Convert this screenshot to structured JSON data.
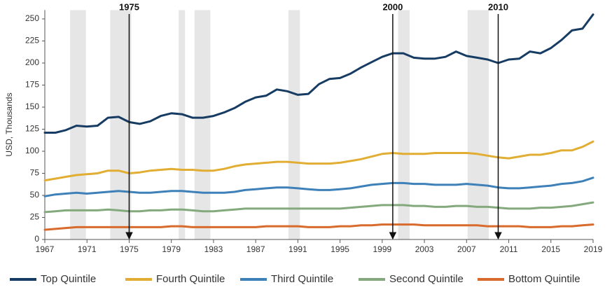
{
  "chart_data": {
    "type": "line",
    "y_label": "USD, Thousands",
    "x": [
      1967,
      1968,
      1969,
      1970,
      1971,
      1972,
      1973,
      1974,
      1975,
      1976,
      1977,
      1978,
      1979,
      1980,
      1981,
      1982,
      1983,
      1984,
      1985,
      1986,
      1987,
      1988,
      1989,
      1990,
      1991,
      1992,
      1993,
      1994,
      1995,
      1996,
      1997,
      1998,
      1999,
      2000,
      2001,
      2002,
      2003,
      2004,
      2005,
      2006,
      2007,
      2008,
      2009,
      2010,
      2011,
      2012,
      2013,
      2014,
      2015,
      2016,
      2017,
      2018,
      2019
    ],
    "series": [
      {
        "name": "Top Quintile",
        "color": "#173c63",
        "values": [
          121,
          121,
          124,
          129,
          128,
          129,
          138,
          139,
          133,
          131,
          134,
          140,
          143,
          142,
          138,
          138,
          140,
          144,
          149,
          156,
          161,
          163,
          170,
          168,
          164,
          165,
          176,
          182,
          183,
          188,
          195,
          201,
          207,
          211,
          211,
          206,
          205,
          205,
          207,
          213,
          208,
          206,
          204,
          200,
          204,
          205,
          213,
          211,
          217,
          226,
          237,
          239,
          255
        ]
      },
      {
        "name": "Fourth Quintile",
        "color": "#e1ae33",
        "values": [
          67,
          69,
          71,
          73,
          74,
          75,
          78,
          78,
          75,
          76,
          78,
          79,
          80,
          79,
          79,
          78,
          78,
          80,
          83,
          85,
          86,
          87,
          88,
          88,
          87,
          86,
          86,
          86,
          87,
          89,
          91,
          94,
          97,
          98,
          97,
          97,
          97,
          98,
          98,
          98,
          98,
          97,
          95,
          93,
          92,
          94,
          96,
          96,
          98,
          101,
          101,
          105,
          111
        ]
      },
      {
        "name": "Third Quintile",
        "color": "#3e80b8",
        "values": [
          49,
          51,
          52,
          53,
          52,
          53,
          54,
          55,
          54,
          53,
          53,
          54,
          55,
          55,
          54,
          53,
          53,
          53,
          54,
          56,
          57,
          58,
          59,
          59,
          58,
          57,
          56,
          56,
          57,
          58,
          60,
          62,
          63,
          64,
          64,
          63,
          63,
          62,
          62,
          62,
          63,
          62,
          61,
          59,
          58,
          58,
          59,
          60,
          61,
          63,
          64,
          66,
          70
        ]
      },
      {
        "name": "Second Quintile",
        "color": "#84a97c",
        "values": [
          31,
          32,
          33,
          33,
          33,
          33,
          34,
          33,
          32,
          32,
          33,
          33,
          34,
          34,
          33,
          32,
          32,
          33,
          34,
          35,
          35,
          35,
          35,
          35,
          35,
          35,
          35,
          35,
          35,
          36,
          37,
          38,
          39,
          39,
          39,
          38,
          38,
          37,
          37,
          38,
          38,
          37,
          37,
          36,
          35,
          35,
          35,
          36,
          36,
          37,
          38,
          40,
          42
        ]
      },
      {
        "name": "Bottom Quintile",
        "color": "#d86a2c",
        "values": [
          11,
          12,
          13,
          14,
          14,
          14,
          14,
          14,
          14,
          14,
          14,
          14,
          15,
          15,
          14,
          14,
          14,
          14,
          14,
          14,
          14,
          15,
          15,
          15,
          15,
          14,
          14,
          14,
          15,
          15,
          16,
          16,
          17,
          17,
          17,
          17,
          16,
          16,
          16,
          16,
          16,
          16,
          15,
          15,
          15,
          15,
          14,
          14,
          14,
          15,
          15,
          16,
          17
        ]
      }
    ],
    "xlim": [
      1967,
      2019
    ],
    "xticks": [
      1967,
      1971,
      1975,
      1979,
      1983,
      1987,
      1991,
      1995,
      1999,
      2003,
      2007,
      2011,
      2015,
      2019
    ],
    "ylim": [
      0,
      260
    ],
    "yticks": [
      0,
      25,
      50,
      75,
      100,
      125,
      150,
      175,
      200,
      225,
      250
    ],
    "grid": false,
    "shade_color": "#e6e6e6",
    "shaded_periods": [
      {
        "start": 1969.4,
        "end": 1970.9
      },
      {
        "start": 1973.2,
        "end": 1975.2
      },
      {
        "start": 1979.7,
        "end": 1980.3
      },
      {
        "start": 1981.2,
        "end": 1982.7
      },
      {
        "start": 1990.1,
        "end": 1991.2
      },
      {
        "start": 2000.5,
        "end": 2001.6
      },
      {
        "start": 2007.1,
        "end": 2009.1
      }
    ],
    "annotations": [
      {
        "x": 1975,
        "label": "1975"
      },
      {
        "x": 2000,
        "label": "2000"
      },
      {
        "x": 2010,
        "label": "2010"
      }
    ],
    "legend_position": "bottom"
  }
}
